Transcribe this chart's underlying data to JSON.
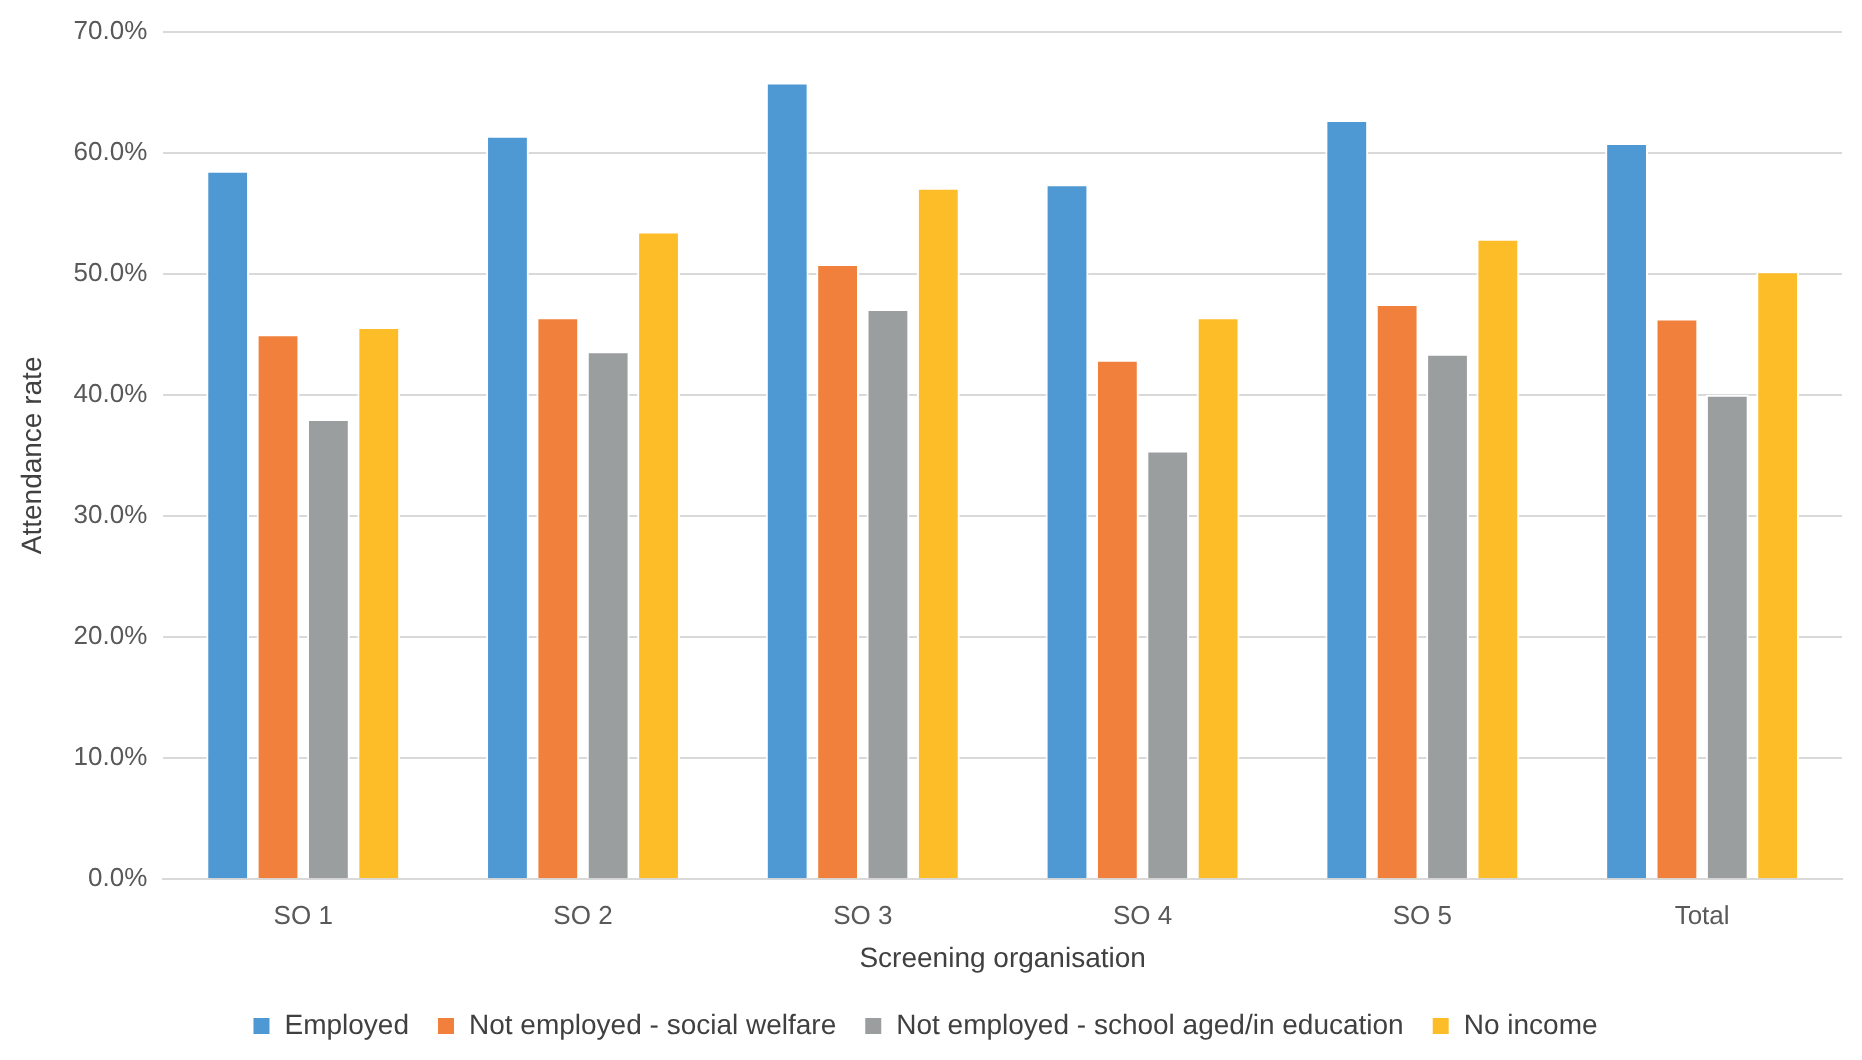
{
  "chart_data": {
    "type": "bar",
    "xlabel": "Screening organisation",
    "ylabel": "Attendance rate",
    "categories": [
      "SO 1",
      "SO 2",
      "SO 3",
      "SO 4",
      "SO 5",
      "Total"
    ],
    "series": [
      {
        "name": "Employed",
        "color": "#4e98d3",
        "values": [
          58.5,
          61.4,
          65.8,
          57.4,
          62.7,
          60.8
        ]
      },
      {
        "name": "Not employed - social welfare",
        "color": "#f0803c",
        "values": [
          45.0,
          46.4,
          50.8,
          42.9,
          47.5,
          46.3
        ]
      },
      {
        "name": "Not employed - school aged/in education",
        "color": "#9b9e9e",
        "values": [
          38.0,
          43.6,
          47.1,
          35.4,
          43.4,
          40.0
        ]
      },
      {
        "name": "No income",
        "color": "#fdbd28",
        "values": [
          45.6,
          53.5,
          57.1,
          46.4,
          52.9,
          50.2
        ]
      }
    ],
    "ylim": [
      0,
      70
    ],
    "yticks": [
      {
        "value": 0,
        "label": "0.0%"
      },
      {
        "value": 10,
        "label": "10.0%"
      },
      {
        "value": 20,
        "label": "20.0%"
      },
      {
        "value": 30,
        "label": "30.0%"
      },
      {
        "value": 40,
        "label": "40.0%"
      },
      {
        "value": 50,
        "label": "50.0%"
      },
      {
        "value": 60,
        "label": "60.0%"
      },
      {
        "value": 70,
        "label": "70.0%"
      }
    ],
    "grid": "y",
    "legend": "bottom"
  }
}
